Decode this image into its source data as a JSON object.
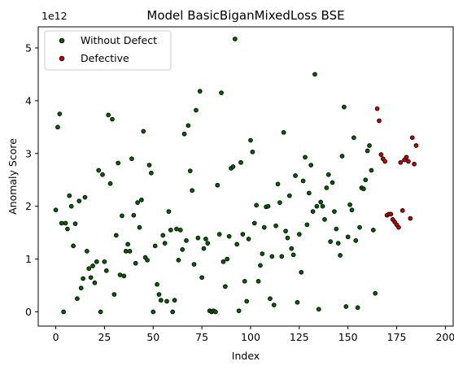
{
  "chart_data": {
    "type": "scatter",
    "title": "Model BasicBiganMixedLoss BSE",
    "xlabel": "Index",
    "ylabel": "Anomaly Score",
    "y_offset_label": "1e12",
    "xlim": [
      -9,
      204
    ],
    "ylim": [
      -0.27,
      5.4
    ],
    "xticks": [
      0,
      25,
      50,
      75,
      100,
      125,
      150,
      175,
      200
    ],
    "yticks": [
      0,
      1,
      2,
      3,
      4,
      5
    ],
    "grid": false,
    "legend_position": "top-left",
    "series": [
      {
        "name": "Without Defect",
        "color": "#006400",
        "points": [
          [
            0,
            1.93
          ],
          [
            1,
            3.5
          ],
          [
            2,
            3.75
          ],
          [
            3,
            1.68
          ],
          [
            4,
            0.0
          ],
          [
            5,
            1.68
          ],
          [
            6,
            1.57
          ],
          [
            7,
            2.2
          ],
          [
            8,
            2.0
          ],
          [
            9,
            1.25
          ],
          [
            10,
            1.67
          ],
          [
            11,
            0.25
          ],
          [
            12,
            2.1
          ],
          [
            13,
            0.45
          ],
          [
            14,
            0.63
          ],
          [
            15,
            2.17
          ],
          [
            16,
            1.15
          ],
          [
            17,
            0.82
          ],
          [
            18,
            0.65
          ],
          [
            19,
            0.87
          ],
          [
            20,
            0.55
          ],
          [
            21,
            0.95
          ],
          [
            22,
            2.68
          ],
          [
            23,
            0.0
          ],
          [
            24,
            2.6
          ],
          [
            25,
            0.95
          ],
          [
            26,
            0.78
          ],
          [
            27,
            3.73
          ],
          [
            28,
            2.43
          ],
          [
            29,
            3.65
          ],
          [
            30,
            0.33
          ],
          [
            31,
            1.45
          ],
          [
            32,
            2.82
          ],
          [
            33,
            0.7
          ],
          [
            34,
            1.82
          ],
          [
            35,
            0.68
          ],
          [
            36,
            1.15
          ],
          [
            37,
            1.28
          ],
          [
            38,
            1.15
          ],
          [
            39,
            2.9
          ],
          [
            40,
            1.83
          ],
          [
            41,
            0.92
          ],
          [
            42,
            2.07
          ],
          [
            43,
            1.6
          ],
          [
            44,
            2.12
          ],
          [
            45,
            3.42
          ],
          [
            46,
            1.03
          ],
          [
            47,
            0.98
          ],
          [
            48,
            2.78
          ],
          [
            49,
            2.63
          ],
          [
            50,
            0.0
          ],
          [
            51,
            1.25
          ],
          [
            52,
            0.52
          ],
          [
            53,
            0.33
          ],
          [
            54,
            0.22
          ],
          [
            55,
            1.45
          ],
          [
            56,
            1.3
          ],
          [
            57,
            0.2
          ],
          [
            58,
            1.9
          ],
          [
            59,
            1.55
          ],
          [
            60,
            0.0
          ],
          [
            61,
            0.22
          ],
          [
            62,
            1.57
          ],
          [
            63,
            0.98
          ],
          [
            64,
            1.55
          ],
          [
            65,
            1.18
          ],
          [
            66,
            3.37
          ],
          [
            67,
            1.35
          ],
          [
            68,
            3.53
          ],
          [
            69,
            2.67
          ],
          [
            70,
            2.3
          ],
          [
            71,
            0.9
          ],
          [
            72,
            3.82
          ],
          [
            73,
            1.4
          ],
          [
            74,
            4.18
          ],
          [
            75,
            0.65
          ],
          [
            76,
            1.2
          ],
          [
            77,
            1.38
          ],
          [
            78,
            1.3
          ],
          [
            79,
            0.02
          ],
          [
            80,
            0.0
          ],
          [
            81,
            0.02
          ],
          [
            82,
            0.0
          ],
          [
            83,
            2.4
          ],
          [
            84,
            1.47
          ],
          [
            85,
            4.15
          ],
          [
            86,
            0.95
          ],
          [
            87,
            0.48
          ],
          [
            88,
            1.0
          ],
          [
            89,
            1.43
          ],
          [
            90,
            2.72
          ],
          [
            91,
            2.75
          ],
          [
            92,
            5.17
          ],
          [
            93,
            1.28
          ],
          [
            94,
            0.02
          ],
          [
            95,
            2.83
          ],
          [
            96,
            1.47
          ],
          [
            97,
            0.58
          ],
          [
            98,
            0.2
          ],
          [
            99,
            1.38
          ],
          [
            100,
            3.25
          ],
          [
            101,
            3.03
          ],
          [
            102,
            1.68
          ],
          [
            103,
            2.02
          ],
          [
            104,
            0.58
          ],
          [
            105,
            0.88
          ],
          [
            106,
            1.1
          ],
          [
            107,
            1.6
          ],
          [
            108,
            1.99
          ],
          [
            109,
            2.0
          ],
          [
            110,
            0.25
          ],
          [
            111,
            1.05
          ],
          [
            112,
            0.13
          ],
          [
            113,
            1.63
          ],
          [
            114,
            2.42
          ],
          [
            115,
            2.07
          ],
          [
            116,
            1.05
          ],
          [
            117,
            3.4
          ],
          [
            118,
            1.53
          ],
          [
            119,
            1.4
          ],
          [
            120,
            2.2
          ],
          [
            121,
            1.2
          ],
          [
            122,
            1.08
          ],
          [
            123,
            2.58
          ],
          [
            124,
            0.18
          ],
          [
            125,
            1.47
          ],
          [
            126,
            0.75
          ],
          [
            127,
            2.48
          ],
          [
            128,
            2.93
          ],
          [
            129,
            1.65
          ],
          [
            130,
            2.25
          ],
          [
            131,
            2.78
          ],
          [
            132,
            1.9
          ],
          [
            133,
            4.5
          ],
          [
            134,
            2.0
          ],
          [
            135,
            0.05
          ],
          [
            136,
            2.08
          ],
          [
            137,
            2.0
          ],
          [
            138,
            1.75
          ],
          [
            139,
            2.35
          ],
          [
            140,
            2.6
          ],
          [
            141,
            1.33
          ],
          [
            142,
            2.45
          ],
          [
            143,
            1.9
          ],
          [
            144,
            1.57
          ],
          [
            145,
            1.3
          ],
          [
            146,
            1.07
          ],
          [
            147,
            2.95
          ],
          [
            148,
            3.88
          ],
          [
            149,
            0.1
          ],
          [
            150,
            1.42
          ],
          [
            151,
            2.03
          ],
          [
            152,
            1.93
          ],
          [
            153,
            3.3
          ],
          [
            154,
            1.35
          ],
          [
            155,
            0.08
          ],
          [
            156,
            1.6
          ],
          [
            157,
            2.35
          ],
          [
            158,
            2.33
          ],
          [
            159,
            2.5
          ],
          [
            160,
            3.05
          ],
          [
            161,
            3.15
          ],
          [
            162,
            2.68
          ],
          [
            163,
            1.55
          ],
          [
            164,
            0.35
          ]
        ]
      },
      {
        "name": "Defective",
        "color": "#cc0000",
        "points": [
          [
            165,
            3.85
          ],
          [
            166,
            3.62
          ],
          [
            167,
            2.98
          ],
          [
            168,
            2.9
          ],
          [
            169,
            2.85
          ],
          [
            170,
            1.83
          ],
          [
            171,
            1.85
          ],
          [
            172,
            1.85
          ],
          [
            173,
            1.75
          ],
          [
            174,
            1.7
          ],
          [
            175,
            1.65
          ],
          [
            176,
            1.6
          ],
          [
            177,
            2.83
          ],
          [
            178,
            1.92
          ],
          [
            179,
            2.88
          ],
          [
            180,
            2.93
          ],
          [
            181,
            2.85
          ],
          [
            182,
            1.77
          ],
          [
            183,
            3.3
          ],
          [
            184,
            2.8
          ],
          [
            185,
            3.15
          ]
        ]
      }
    ]
  }
}
